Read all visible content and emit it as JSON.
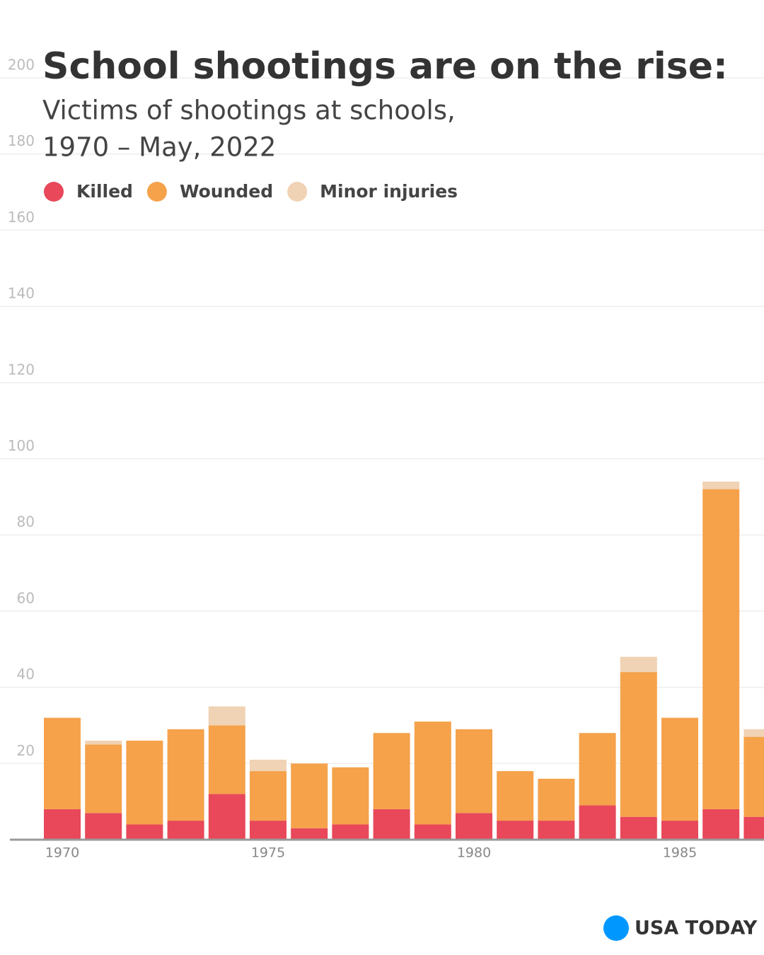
{
  "chart_data": {
    "type": "stacked_bar",
    "title": "School shootings are on the rise:",
    "subtitle": [
      "Victims of shootings at schools,",
      "1970 – May, 2022"
    ],
    "categories": [
      "1970",
      null,
      null,
      null,
      null,
      "1975",
      null,
      null,
      null,
      null,
      "1980",
      null,
      null,
      null,
      null,
      "1985",
      null,
      null
    ],
    "series": [
      {
        "name": "Killed",
        "color": "#e8485a",
        "values": [
          8,
          7,
          4,
          5,
          12,
          5,
          3,
          4,
          8,
          4,
          7,
          5,
          5,
          9,
          6,
          5,
          8,
          6
        ]
      },
      {
        "name": "Wounded",
        "color": "#f5a24b",
        "values": [
          24,
          18,
          22,
          24,
          18,
          13,
          17,
          15,
          20,
          27,
          22,
          13,
          11,
          19,
          38,
          27,
          84,
          21
        ]
      },
      {
        "name": "Minor injuries",
        "color": "#f0d2b4",
        "values": [
          0,
          1,
          0,
          0,
          5,
          3,
          0,
          0,
          0,
          0,
          0,
          0,
          0,
          0,
          4,
          0,
          2,
          2
        ]
      }
    ],
    "ylim": [
      0,
      200
    ],
    "yticks": [
      20,
      40,
      60,
      80,
      100,
      120,
      140,
      160,
      180,
      200
    ],
    "grid": true,
    "brand": "USA TODAY"
  }
}
